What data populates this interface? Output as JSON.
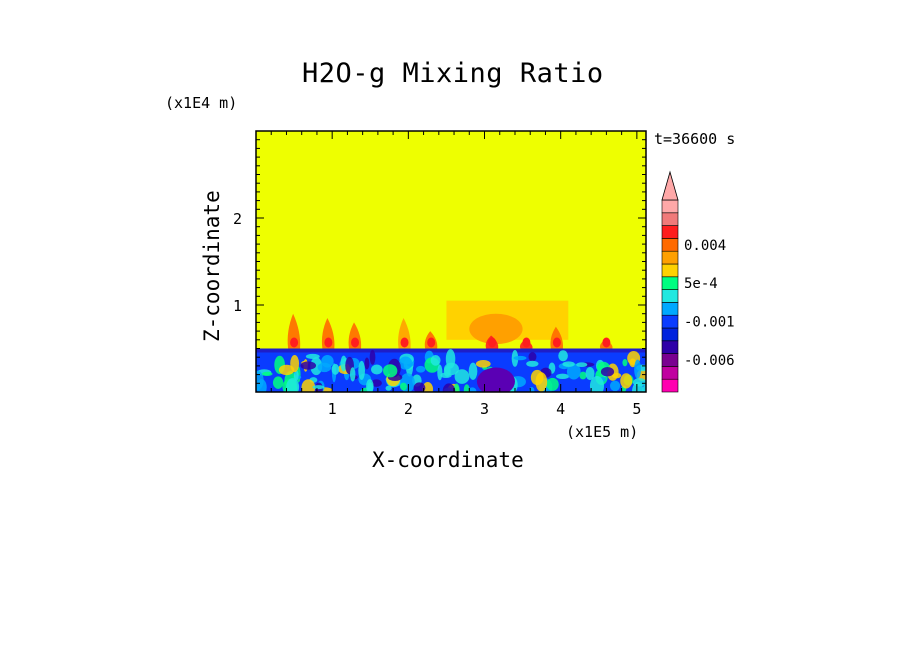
{
  "title": "H2O-g Mixing Ratio",
  "time_label": "t=36600 s",
  "chart_data": {
    "type": "heatmap",
    "title": "H2O-g Mixing Ratio",
    "xlabel": "X-coordinate",
    "ylabel": "Z-coordinate",
    "x_scale_label": "(x1E5 m)",
    "y_scale_label": "(x1E4 m)",
    "xlim": [
      0,
      5.12
    ],
    "ylim": [
      0,
      3.0
    ],
    "x_ticks": [
      "1",
      "2",
      "3",
      "4",
      "5"
    ],
    "x_tick_values": [
      1,
      2,
      3,
      4,
      5
    ],
    "y_ticks": [
      "1",
      "2"
    ],
    "y_tick_values": [
      1,
      2
    ],
    "background_color": "#eeff00",
    "colorbar": {
      "extend": "max",
      "colors": [
        "#ff00b0",
        "#c000a0",
        "#7a0090",
        "#2e00a8",
        "#0022dd",
        "#0a3cff",
        "#00a8ff",
        "#20e8e0",
        "#00ff80",
        "#ffd200",
        "#ffa000",
        "#ff6a00",
        "#ff1e1e",
        "#f07a7a",
        "#ffa8a8"
      ],
      "labels": [
        "-0.006",
        "-0.001",
        "5e-4",
        "0.004"
      ],
      "label_values": [
        -0.006,
        -0.001,
        0.0005,
        0.004
      ],
      "label_levels": [
        2.5,
        5.5,
        8.5,
        11.5
      ]
    },
    "moist_layer": {
      "z_top": 0.5,
      "color": "#0a3cff"
    },
    "layer_top_edge": {
      "z": 0.5,
      "color": "#1e1ec8"
    },
    "dark_core": {
      "x": [
        2.9,
        3.4
      ],
      "z": [
        0.0,
        0.35
      ],
      "color": "#5a00b4"
    },
    "anvil": {
      "x": [
        2.5,
        4.1
      ],
      "z_top": 1.05,
      "z_bottom": 0.6,
      "color": "#ffd200"
    },
    "anvil_core": {
      "x": [
        2.8,
        3.5
      ],
      "z_top": 0.9,
      "z_bottom": 0.55,
      "color": "#ffa000"
    },
    "plumes": [
      {
        "x": 0.5,
        "z_top": 0.9,
        "color": "#ff6a00"
      },
      {
        "x": 0.95,
        "z_top": 0.85,
        "color": "#ff6a00"
      },
      {
        "x": 1.3,
        "z_top": 0.8,
        "color": "#ff6a00"
      },
      {
        "x": 1.95,
        "z_top": 0.85,
        "color": "#ffa000"
      },
      {
        "x": 2.3,
        "z_top": 0.7,
        "color": "#ff6a00"
      },
      {
        "x": 3.1,
        "z_top": 0.65,
        "color": "#ff1e1e"
      },
      {
        "x": 3.55,
        "z_top": 0.6,
        "color": "#ff1e1e"
      },
      {
        "x": 3.95,
        "z_top": 0.75,
        "color": "#ff6a00"
      },
      {
        "x": 4.6,
        "z_top": 0.6,
        "color": "#ff6a00"
      }
    ]
  }
}
